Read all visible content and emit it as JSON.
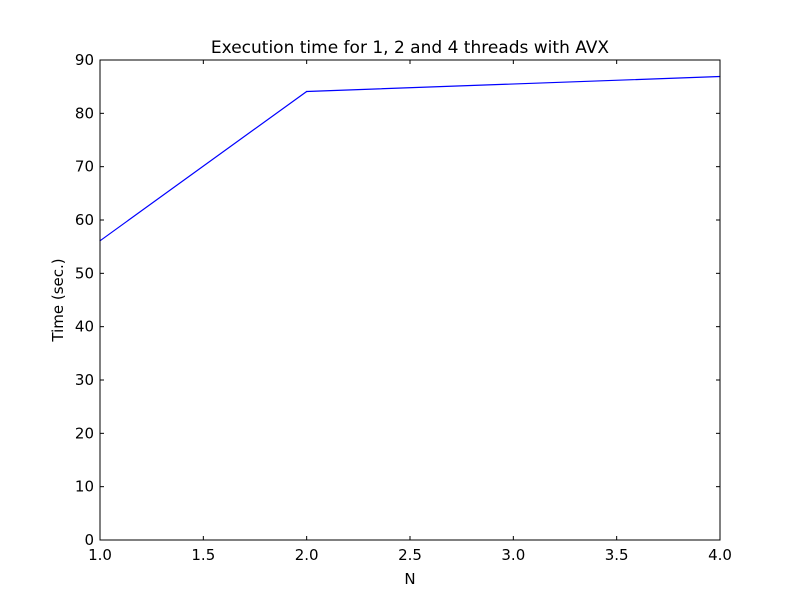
{
  "chart_data": {
    "type": "line",
    "title": "Execution time for 1, 2 and 4 threads with AVX",
    "xlabel": "N",
    "ylabel": "Time (sec.)",
    "xlim": [
      1.0,
      4.0
    ],
    "ylim": [
      0,
      90
    ],
    "xticks": [
      1.0,
      1.5,
      2.0,
      2.5,
      3.0,
      3.5,
      4.0
    ],
    "xtick_labels": [
      "1.0",
      "1.5",
      "2.0",
      "2.5",
      "3.0",
      "3.5",
      "4.0"
    ],
    "yticks": [
      0,
      10,
      20,
      30,
      40,
      50,
      60,
      70,
      80,
      90
    ],
    "ytick_labels": [
      "0",
      "10",
      "20",
      "30",
      "40",
      "50",
      "60",
      "70",
      "80",
      "90"
    ],
    "grid": false,
    "series": [
      {
        "x": [
          1,
          2,
          4
        ],
        "y": [
          56.1,
          84.1,
          86.9
        ],
        "color": "#0000ff"
      }
    ]
  }
}
